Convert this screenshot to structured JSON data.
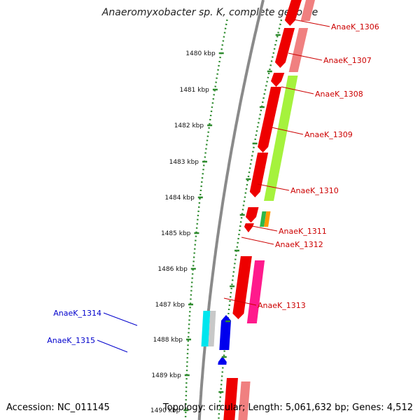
{
  "header": {
    "title": "Anaeromyxobacter sp. K, complete genome"
  },
  "footer": {
    "accession": "Accession: NC_011145",
    "summary": "Topology: circular; Length: 5,061,632 bp; Genes: 4,512"
  },
  "colors": {
    "backbone": "#8a8a8a",
    "scale_dots": "#2e8b2e",
    "forward_label": "#cc0000",
    "reverse_label": "#0000cc"
  },
  "scale_ticks": [
    "1480 kbp",
    "1481 kbp",
    "1482 kbp",
    "1483 kbp",
    "1484 kbp",
    "1485 kbp",
    "1486 kbp",
    "1487 kbp",
    "1488 kbp",
    "1489 kbp",
    "1490 kbp"
  ],
  "gene_labels": [
    {
      "text": "AnaeK_1306",
      "strand": "forward"
    },
    {
      "text": "AnaeK_1307",
      "strand": "forward"
    },
    {
      "text": "AnaeK_1308",
      "strand": "forward"
    },
    {
      "text": "AnaeK_1309",
      "strand": "forward"
    },
    {
      "text": "AnaeK_1310",
      "strand": "forward"
    },
    {
      "text": "AnaeK_1311",
      "strand": "forward"
    },
    {
      "text": "AnaeK_1312",
      "strand": "forward"
    },
    {
      "text": "AnaeK_1313",
      "strand": "forward"
    },
    {
      "text": "AnaeK_1314",
      "strand": "reverse"
    },
    {
      "text": "AnaeK_1315",
      "strand": "reverse"
    }
  ]
}
